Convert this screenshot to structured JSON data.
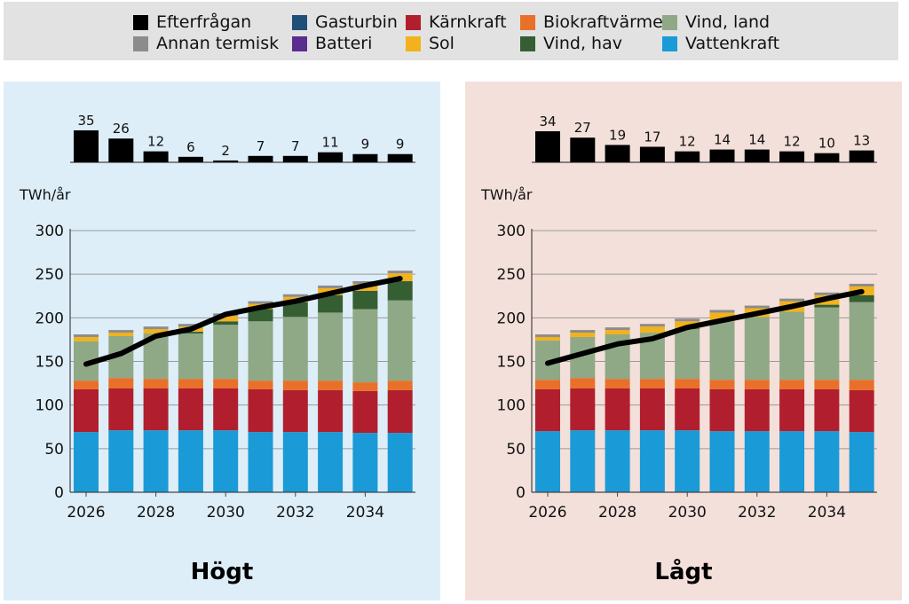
{
  "colors": {
    "Efterfrågan": "#000000",
    "Annan termisk": "#8c8c8c",
    "Gasturbin": "#1f4e79",
    "Batteri": "#5b2d8e",
    "Kärnkraft": "#b11f2e",
    "Sol": "#f2b21c",
    "Biokraftvärme": "#e8702a",
    "Vind, hav": "#355e33",
    "Vind, land": "#8fa886",
    "Vattenkraft": "#1a9ad6",
    "line": "#000000"
  },
  "legend": {
    "items": [
      {
        "name": "Efterfrågan",
        "color": "#000000"
      },
      {
        "name": "Annan termisk",
        "color": "#8c8c8c"
      },
      {
        "name": "Gasturbin",
        "color": "#1f4e79"
      },
      {
        "name": "Batteri",
        "color": "#5b2d8e"
      },
      {
        "name": "Kärnkraft",
        "color": "#b11f2e"
      },
      {
        "name": "Sol",
        "color": "#f2b21c"
      },
      {
        "name": "Biokraftvärme",
        "color": "#e8702a"
      },
      {
        "name": "Vind, hav",
        "color": "#355e33"
      },
      {
        "name": "Vind, land",
        "color": "#8fa886"
      },
      {
        "name": "Vattenkraft",
        "color": "#1a9ad6"
      }
    ]
  },
  "chart_data": [
    {
      "type": "bar",
      "title": "Högt",
      "ylabel": "TWh/år",
      "ylim": [
        0,
        300
      ],
      "yticks": [
        0,
        50,
        100,
        150,
        200,
        250,
        300
      ],
      "xticks": [
        "2026",
        "2028",
        "2030",
        "2032",
        "2034"
      ],
      "categories": [
        "2026",
        "2027",
        "2028",
        "2029",
        "2030",
        "2031",
        "2032",
        "2033",
        "2034",
        "2035"
      ],
      "top_bars": {
        "values": [
          35,
          26,
          12,
          6,
          2,
          7,
          7,
          11,
          9,
          9
        ]
      },
      "series": [
        {
          "name": "Vattenkraft",
          "values": [
            69,
            71,
            71,
            71,
            71,
            69,
            69,
            69,
            68,
            68
          ]
        },
        {
          "name": "Kärnkraft",
          "values": [
            49,
            48,
            48,
            48,
            48,
            49,
            48,
            48,
            48,
            49
          ]
        },
        {
          "name": "Biokraftvärme",
          "values": [
            10,
            12,
            11,
            11,
            11,
            10,
            11,
            11,
            10,
            11
          ]
        },
        {
          "name": "Vind, land",
          "values": [
            45,
            48,
            52,
            52,
            62,
            68,
            73,
            78,
            84,
            92
          ]
        },
        {
          "name": "Vind, hav",
          "values": [
            0,
            0,
            0,
            2,
            4,
            14,
            17,
            20,
            21,
            22
          ]
        },
        {
          "name": "Sol",
          "values": [
            5,
            4,
            5,
            6,
            6,
            6,
            6,
            8,
            8,
            9
          ]
        },
        {
          "name": "Batteri",
          "values": [
            0,
            0,
            0,
            0,
            0,
            0,
            0,
            0,
            0,
            0
          ]
        },
        {
          "name": "Gasturbin",
          "values": [
            0,
            0,
            0,
            0,
            0,
            0,
            0,
            0,
            0,
            0
          ]
        },
        {
          "name": "Annan termisk",
          "values": [
            3,
            3,
            3,
            3,
            3,
            3,
            3,
            3,
            3,
            3
          ]
        }
      ],
      "line": {
        "name": "Efterfrågan",
        "values": [
          147,
          159,
          179,
          187,
          204,
          212,
          219,
          228,
          237,
          245
        ]
      }
    },
    {
      "type": "bar",
      "title": "Lågt",
      "ylabel": "TWh/år",
      "ylim": [
        0,
        300
      ],
      "yticks": [
        0,
        50,
        100,
        150,
        200,
        250,
        300
      ],
      "xticks": [
        "2026",
        "2028",
        "2030",
        "2032",
        "2034"
      ],
      "categories": [
        "2026",
        "2027",
        "2028",
        "2029",
        "2030",
        "2031",
        "2032",
        "2033",
        "2034",
        "2035"
      ],
      "top_bars": {
        "values": [
          34,
          27,
          19,
          17,
          12,
          14,
          14,
          12,
          10,
          13
        ]
      },
      "series": [
        {
          "name": "Vattenkraft",
          "values": [
            70,
            71,
            71,
            71,
            71,
            70,
            70,
            70,
            70,
            69
          ]
        },
        {
          "name": "Kärnkraft",
          "values": [
            48,
            48,
            48,
            48,
            48,
            48,
            48,
            48,
            48,
            48
          ]
        },
        {
          "name": "Biokraftvärme",
          "values": [
            11,
            12,
            11,
            11,
            11,
            11,
            11,
            11,
            11,
            12
          ]
        },
        {
          "name": "Vind, land",
          "values": [
            45,
            47,
            51,
            53,
            57,
            67,
            72,
            78,
            83,
            89
          ]
        },
        {
          "name": "Vind, hav",
          "values": [
            0,
            0,
            0,
            0,
            1,
            0,
            0,
            0,
            3,
            8
          ]
        },
        {
          "name": "Sol",
          "values": [
            4,
            5,
            5,
            7,
            8,
            10,
            10,
            12,
            11,
            10
          ]
        },
        {
          "name": "Batteri",
          "values": [
            0,
            0,
            0,
            0,
            0,
            0,
            0,
            0,
            0,
            0
          ]
        },
        {
          "name": "Gasturbin",
          "values": [
            0,
            0,
            0,
            0,
            0,
            0,
            0,
            0,
            0,
            0
          ]
        },
        {
          "name": "Annan termisk",
          "values": [
            3,
            3,
            3,
            3,
            3,
            3,
            3,
            3,
            3,
            3
          ]
        }
      ],
      "line": {
        "name": "Efterfrågan",
        "values": [
          148,
          159,
          170,
          176,
          189,
          197,
          205,
          213,
          222,
          230
        ]
      }
    }
  ]
}
